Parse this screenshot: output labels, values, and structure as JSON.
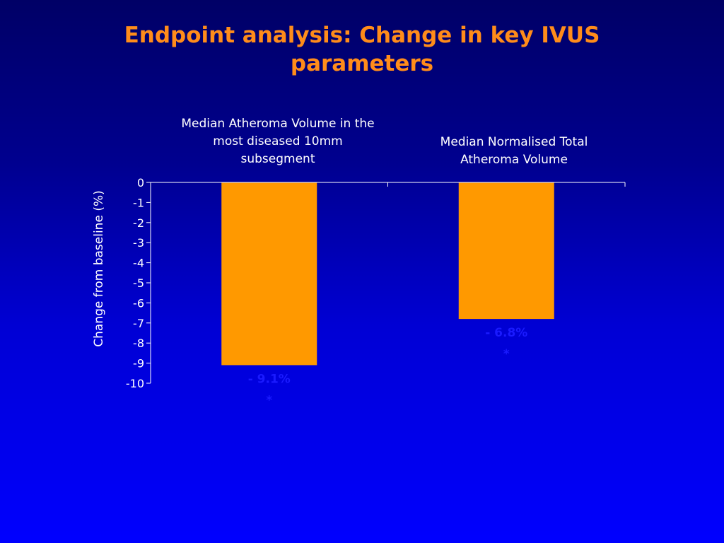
{
  "slide": {
    "title_line1": "Endpoint analysis: Change in key IVUS",
    "title_line2": "parameters"
  },
  "chart_data": {
    "type": "bar",
    "categories": [
      [
        "Median Atheroma Volume in the",
        "most diseased 10mm",
        "subsegment"
      ],
      [
        "Median Normalised Total",
        "Atheroma Volume"
      ]
    ],
    "values": [
      -9.1,
      -6.8
    ],
    "value_labels": [
      [
        "- 9.1%",
        "*"
      ],
      [
        "- 6.8%",
        "*"
      ]
    ],
    "ylabel": "Change from baseline (%)",
    "ylim": [
      -10,
      0
    ],
    "yticks": [
      0,
      -1,
      -2,
      -3,
      -4,
      -5,
      -6,
      -7,
      -8,
      -9,
      -10
    ],
    "grid": false,
    "colors": {
      "bar": "#ff9900",
      "value_label": "#1a1aff",
      "axis": "#ffffff",
      "title": "#ff8c1a"
    }
  }
}
